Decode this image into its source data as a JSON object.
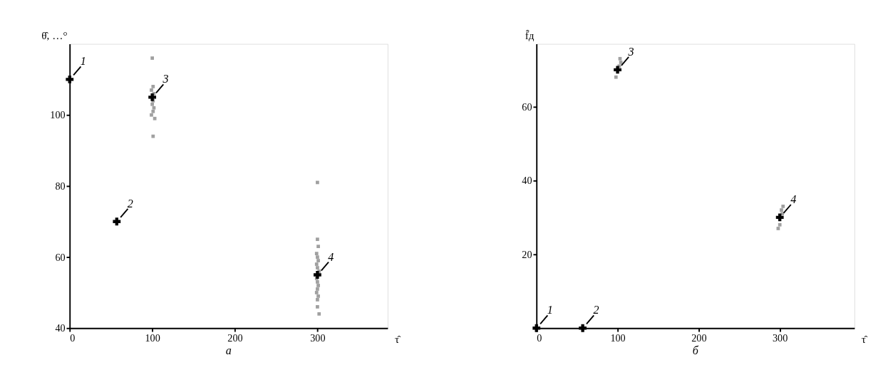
{
  "chart_data": [
    {
      "type": "scatter",
      "xlabel": "τ̂",
      "ylabel": "θ̂, …°",
      "xlim": [
        0,
        385
      ],
      "ylim": [
        40,
        120
      ],
      "xticks": [
        0,
        100,
        200,
        300
      ],
      "yticks": [
        40,
        60,
        80,
        100
      ],
      "grid": false,
      "series": [
        {
          "color": "#a0a0a0",
          "marker": "square",
          "x": [
            100,
            101,
            99,
            102,
            101,
            100,
            102,
            101,
            99,
            103,
            101,
            300,
            300,
            301,
            299,
            300,
            301,
            299,
            300,
            302,
            299,
            300,
            301,
            300,
            299,
            301,
            300,
            300,
            302
          ],
          "values": [
            116,
            108,
            107,
            106,
            104,
            103,
            102,
            101,
            100,
            99,
            94,
            81,
            65,
            63,
            61,
            60,
            59,
            58,
            57,
            56,
            54,
            53,
            52,
            51,
            50,
            49,
            48,
            46,
            44
          ]
        },
        {
          "color": "#000000",
          "marker": "cross",
          "x": [
            0,
            57,
            100,
            300
          ],
          "values": [
            110,
            70,
            105,
            55
          ]
        }
      ],
      "annotations": [
        {
          "text": "1",
          "x": 0,
          "y": 110
        },
        {
          "text": "2",
          "x": 57,
          "y": 70
        },
        {
          "text": "3",
          "x": 100,
          "y": 105
        },
        {
          "text": "4",
          "x": 300,
          "y": 55
        },
        "а"
      ]
    },
    {
      "type": "scatter",
      "xlabel": "τ̂",
      "ylabel": "f̂д",
      "xlim": [
        0,
        392
      ],
      "ylim": [
        0,
        77
      ],
      "xticks": [
        0,
        100,
        200,
        300
      ],
      "yticks": [
        20,
        40,
        60
      ],
      "grid": false,
      "series": [
        {
          "color": "#a0a0a0",
          "marker": "square",
          "x": [
            98,
            102,
            104,
            103,
            298,
            300,
            302,
            304,
            303
          ],
          "values": [
            68,
            71,
            72,
            73,
            27,
            28,
            32,
            33,
            31
          ]
        },
        {
          "color": "#000000",
          "marker": "cross",
          "x": [
            0,
            57,
            100,
            300
          ],
          "values": [
            0,
            0,
            70,
            30
          ]
        }
      ],
      "annotations": [
        {
          "text": "1",
          "x": 0,
          "y": 0
        },
        {
          "text": "2",
          "x": 57,
          "y": 0
        },
        {
          "text": "3",
          "x": 100,
          "y": 70
        },
        {
          "text": "4",
          "x": 300,
          "y": 30
        },
        "б"
      ]
    }
  ]
}
